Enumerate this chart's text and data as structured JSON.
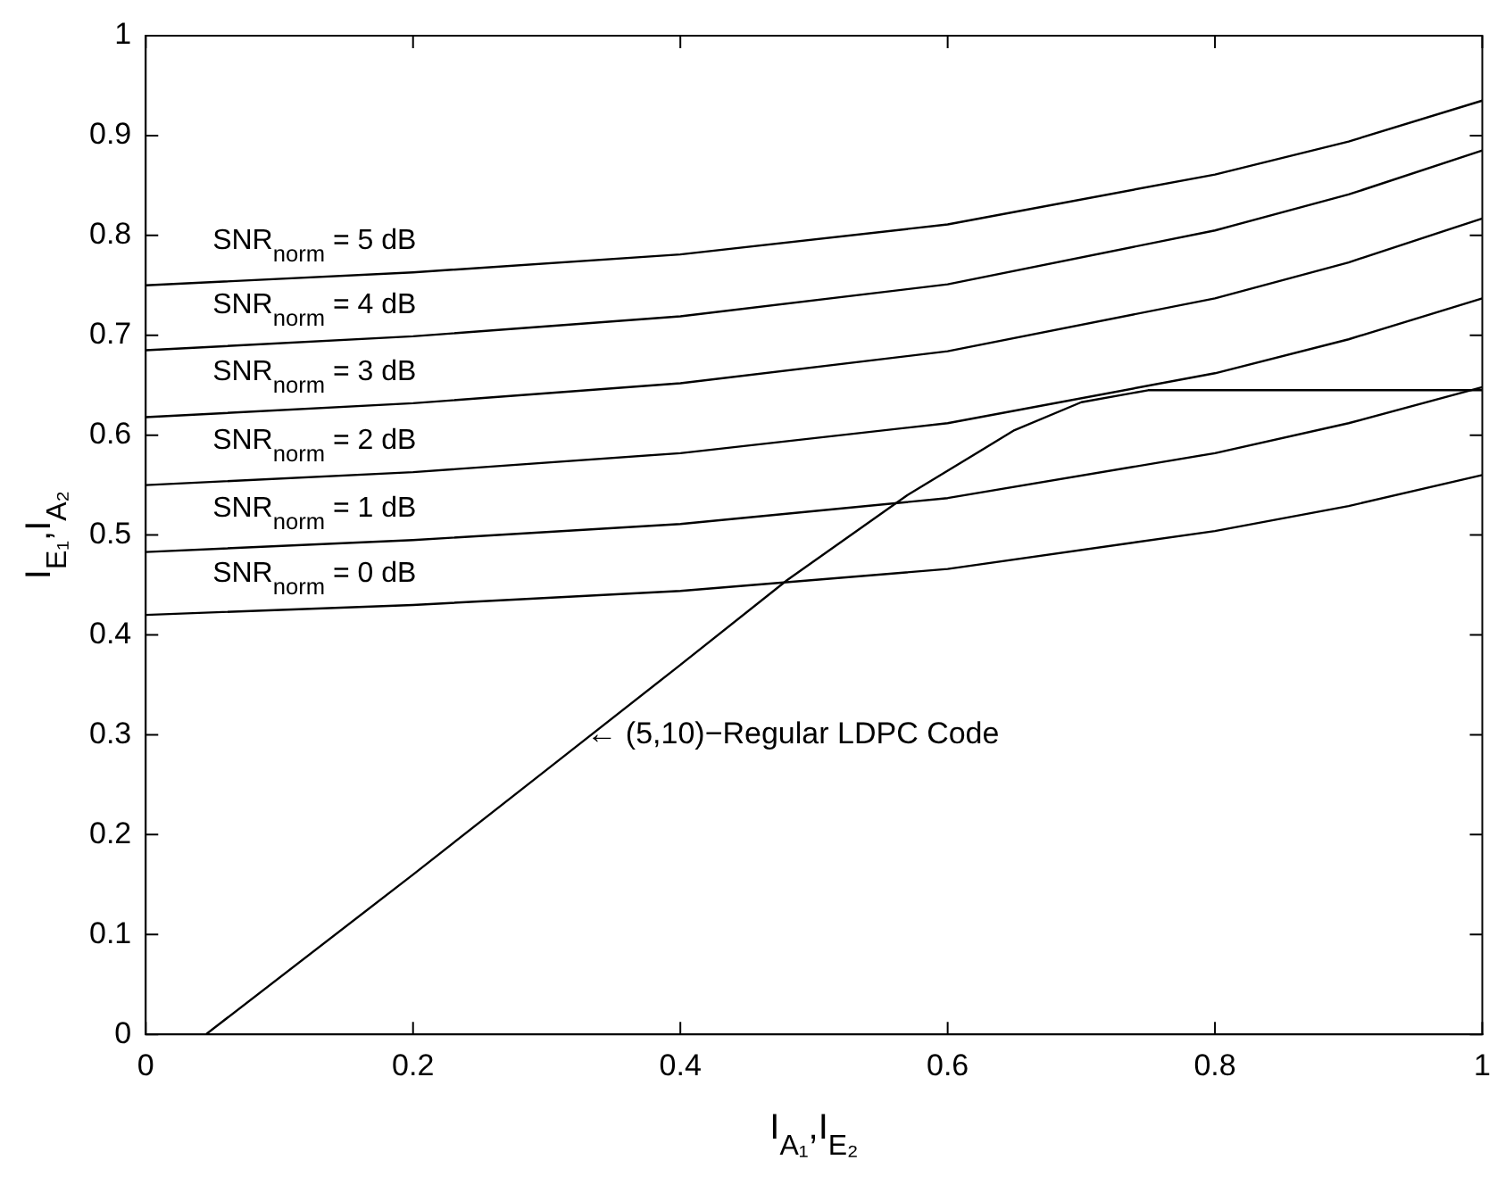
{
  "chart_data": {
    "type": "line",
    "xlabel": "I$_{A₁}$,I$_{E₂}$",
    "ylabel": "I$_{E₁}$,I$_{A₂}$",
    "xlim": [
      0,
      1
    ],
    "ylim": [
      0,
      1
    ],
    "xticks": [
      0,
      0.2,
      0.4,
      0.6,
      0.8,
      1
    ],
    "yticks": [
      0,
      0.1,
      0.2,
      0.3,
      0.4,
      0.5,
      0.6,
      0.7,
      0.8,
      0.9,
      1
    ],
    "grid": false,
    "marker": "none",
    "line_style": "solid",
    "series": [
      {
        "name": "SNR$_{norm}$ = 0 dB",
        "color": "#000000",
        "x": [
          0,
          0.2,
          0.4,
          0.6,
          0.8,
          0.9,
          1
        ],
        "values": [
          0.42,
          0.43,
          0.444,
          0.466,
          0.504,
          0.529,
          0.56
        ]
      },
      {
        "name": "SNR$_{norm}$ = 1 dB",
        "color": "#000000",
        "x": [
          0,
          0.2,
          0.4,
          0.6,
          0.8,
          0.9,
          1
        ],
        "values": [
          0.483,
          0.495,
          0.511,
          0.537,
          0.582,
          0.612,
          0.648
        ]
      },
      {
        "name": "SNR$_{norm}$ = 2 dB",
        "color": "#000000",
        "x": [
          0,
          0.2,
          0.4,
          0.6,
          0.8,
          0.9,
          1
        ],
        "values": [
          0.55,
          0.563,
          0.582,
          0.612,
          0.662,
          0.696,
          0.737
        ]
      },
      {
        "name": "SNR$_{norm}$ = 3 dB",
        "color": "#000000",
        "x": [
          0,
          0.2,
          0.4,
          0.6,
          0.8,
          0.9,
          1
        ],
        "values": [
          0.618,
          0.632,
          0.652,
          0.684,
          0.737,
          0.773,
          0.817
        ]
      },
      {
        "name": "SNR$_{norm}$ = 4 dB",
        "color": "#000000",
        "x": [
          0,
          0.2,
          0.4,
          0.6,
          0.8,
          0.9,
          1
        ],
        "values": [
          0.685,
          0.699,
          0.719,
          0.751,
          0.805,
          0.841,
          0.885
        ]
      },
      {
        "name": "SNR$_{norm}$ = 5 dB",
        "color": "#000000",
        "x": [
          0,
          0.2,
          0.4,
          0.6,
          0.8,
          0.9,
          1
        ],
        "values": [
          0.75,
          0.763,
          0.781,
          0.811,
          0.861,
          0.894,
          0.935
        ]
      },
      {
        "color": "#000000",
        "x": [
          0.045,
          0.2,
          0.3,
          0.4,
          0.48,
          0.57,
          0.65,
          0.7,
          0.75,
          0.8,
          1
        ],
        "values": [
          0,
          0.16,
          0.265,
          0.37,
          0.455,
          0.54,
          0.605,
          0.633,
          0.645,
          0.645,
          0.645
        ]
      }
    ],
    "annotations": [
      {
        "text": "← (5,10)−Regular LDPC Code",
        "x": 0.33,
        "y": 0.3
      }
    ]
  }
}
